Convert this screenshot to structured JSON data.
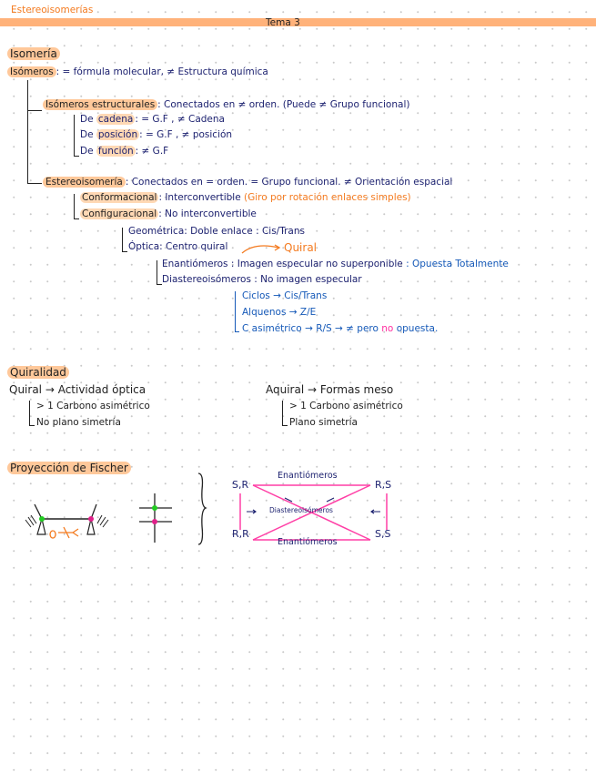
{
  "header": {
    "doc_title": "Estereoisomerías",
    "topic": "Tema 3"
  },
  "isomeria": {
    "heading": "Isomería",
    "isomeros_label": "Isómeros",
    "isomeros_def": ": = fórmula molecular, ≠ Estructura química",
    "estructurales": {
      "label": "Isómeros estructurales",
      "def": ": Conectados en ≠ orden. (Puede ≠ Grupo funcional)",
      "items": [
        {
          "prefix": "De ",
          "label": "cadena",
          "def": ": = G.F , ≠ Cadena"
        },
        {
          "prefix": "De ",
          "label": "posición",
          "def": ": = G.F , ≠ posición"
        },
        {
          "prefix": "De ",
          "label": "función",
          "def": ": ≠ G.F"
        }
      ]
    },
    "estereo": {
      "label": "Estereoisomería",
      "def": ": Conectados en = orden. = Grupo funcional. ≠ Orientación espacial",
      "conformacional": {
        "label": "Conformacional",
        "def": ": Interconvertible ",
        "note": "(Giro por rotación enlaces simples)"
      },
      "configuracional": {
        "label": "Configuracional",
        "def": ": No interconvertible"
      },
      "geometrica": "Geométrica: Doble enlace : Cis/Trans",
      "optica": "Óptica: Centro quiral",
      "quiral_note": "Quiral",
      "enantiomeros": {
        "label": "Enantiómeros : Imagen especular no superponible ",
        "note": ": Opuesta Totalmente"
      },
      "diastereo": "Diastereoisómeros : No imagen especular",
      "sub": [
        {
          "text": "Ciclos → Cis/Trans"
        },
        {
          "text": "Alquenos → Z/E"
        },
        {
          "text": "C asimétrico → R/S → ≠ pero ",
          "pink": "no",
          "end": " opuesta."
        }
      ]
    }
  },
  "quiralidad": {
    "heading": "Quiralidad",
    "quiral": {
      "title": "Quiral → Actividad óptica",
      "items": [
        "> 1 Carbono asimétrico",
        "No plano simetría"
      ]
    },
    "aquiral": {
      "title": "Aquiral → Formas meso",
      "items": [
        "> 1 Carbono asimétrico",
        "Plano simetría"
      ]
    }
  },
  "fischer": {
    "heading": "Proyección de Fischer",
    "corners": {
      "tl": "S,R",
      "tr": "R,S",
      "bl": "R,R",
      "br": "S,S"
    },
    "top_label": "Enantiómeros",
    "bottom_label": "Enantiómeros",
    "center_label": "Diastereoisómeros",
    "colors": {
      "lines": "#ff3fa6",
      "dot1": "#22cc22",
      "dot2": "#e0208a",
      "arrow": "#f47b20"
    }
  }
}
